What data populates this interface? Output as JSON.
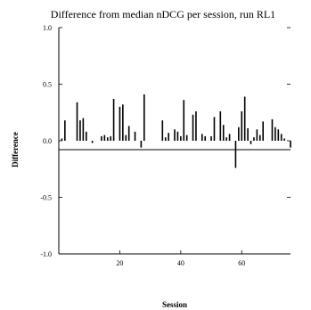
{
  "chart_data": {
    "type": "bar",
    "title": "Difference from median nDCG per session, run RL1",
    "xlabel": "Session",
    "ylabel": "Difference",
    "xlim": [
      0,
      76
    ],
    "ylim": [
      -1.0,
      1.0
    ],
    "x_ticks": [
      20,
      40,
      60
    ],
    "x_tick_labels": [
      "20",
      "40",
      "60"
    ],
    "y_ticks": [
      -1.0,
      -0.5,
      0.0,
      0.5,
      1.0
    ],
    "y_tick_labels": [
      "-1.0",
      "-0.5",
      "0.0",
      "0.5",
      "1.0"
    ],
    "grid": false,
    "bar_color": "#000000",
    "x": [
      1,
      2,
      3,
      4,
      5,
      6,
      7,
      8,
      9,
      10,
      11,
      12,
      13,
      14,
      15,
      16,
      17,
      18,
      19,
      20,
      21,
      22,
      23,
      24,
      25,
      26,
      27,
      28,
      29,
      30,
      31,
      32,
      33,
      34,
      35,
      36,
      37,
      38,
      39,
      40,
      41,
      42,
      43,
      44,
      45,
      46,
      47,
      48,
      49,
      50,
      51,
      52,
      53,
      54,
      55,
      56,
      57,
      58,
      59,
      60,
      61,
      62,
      63,
      64,
      65,
      66,
      67,
      68,
      69,
      70,
      71,
      72,
      73,
      74,
      75,
      76
    ],
    "values": [
      0.02,
      0.18,
      0.0,
      0.0,
      0.0,
      0.34,
      0.18,
      0.2,
      0.08,
      0.0,
      -0.02,
      0.0,
      0.0,
      0.04,
      0.05,
      0.03,
      0.04,
      0.37,
      0.0,
      0.3,
      0.32,
      0.05,
      0.13,
      0.0,
      0.08,
      0.0,
      -0.06,
      0.41,
      0.0,
      0.0,
      0.0,
      0.0,
      0.0,
      0.18,
      0.03,
      0.07,
      0.0,
      0.1,
      0.08,
      0.04,
      0.36,
      0.05,
      0.0,
      0.23,
      0.26,
      0.0,
      0.06,
      0.04,
      0.0,
      0.04,
      0.21,
      0.0,
      0.26,
      0.14,
      0.03,
      0.06,
      0.0,
      -0.24,
      0.12,
      0.26,
      0.39,
      0.11,
      -0.03,
      0.03,
      0.1,
      0.05,
      0.17,
      0.0,
      0.0,
      0.19,
      0.12,
      0.1,
      0.06,
      0.02,
      0.0,
      -0.06
    ]
  }
}
